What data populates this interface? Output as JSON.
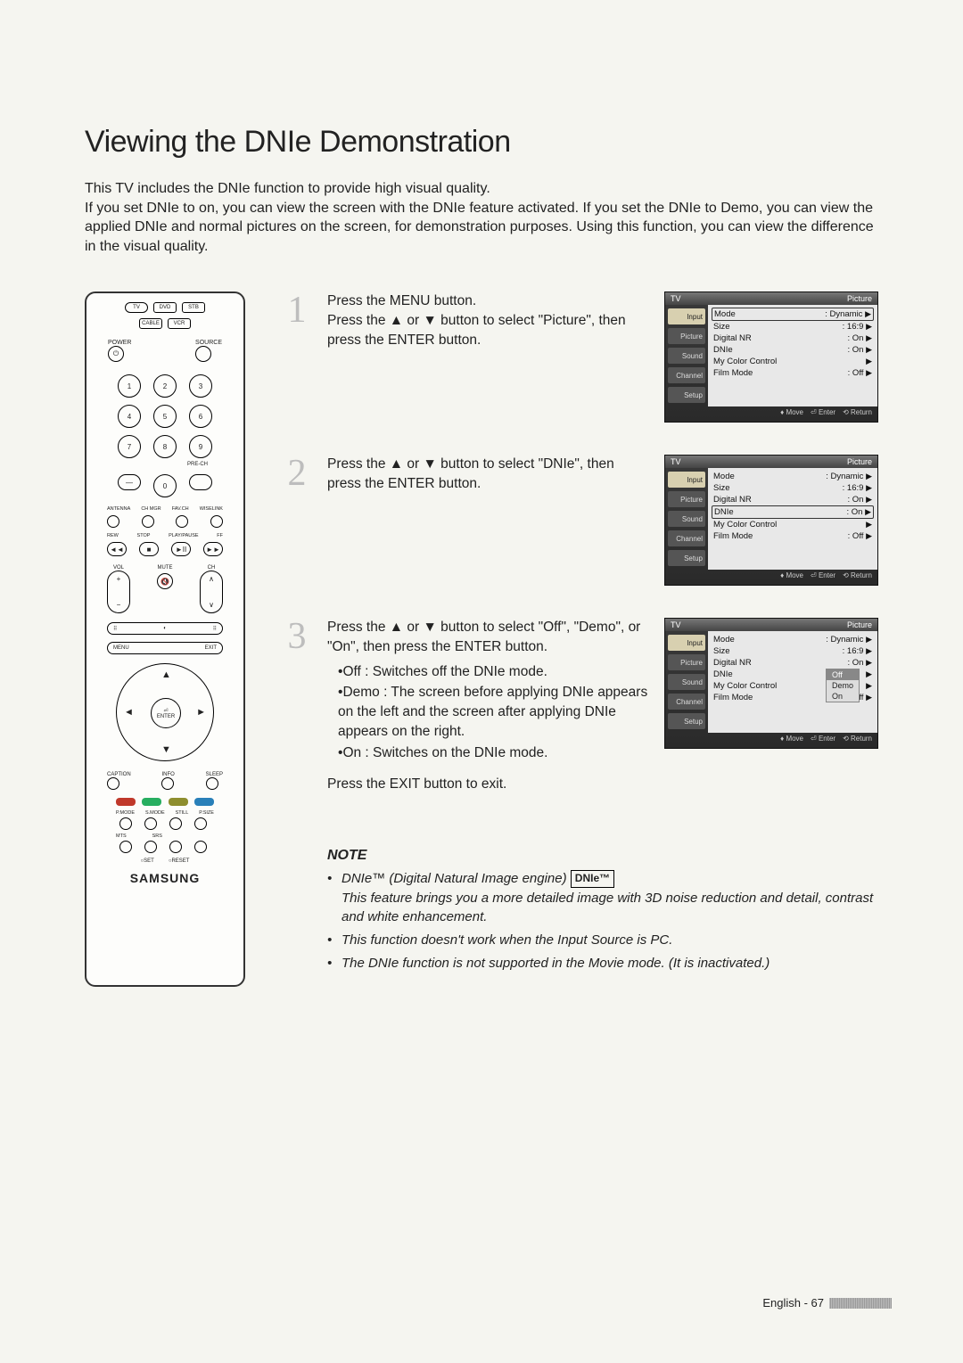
{
  "title": "Viewing the DNIe Demonstration",
  "intro": "This TV includes the DNIe function to provide high visual quality.\nIf you set DNIe to on, you can view the screen with the DNIe feature activated. If you set the DNIe to Demo, you can view the applied DNIe and normal pictures on the screen, for demonstration purposes. Using this function, you can view the difference in the visual quality.",
  "remote": {
    "modes": [
      "TV",
      "DVD",
      "STB",
      "CABLE",
      "VCR"
    ],
    "power": "POWER",
    "source": "SOURCE",
    "numbers": [
      "1",
      "2",
      "3",
      "4",
      "5",
      "6",
      "7",
      "8",
      "9"
    ],
    "prech": "PRE-CH",
    "zero": "0",
    "row_lbls": [
      "ANTENNA",
      "CH MGR",
      "FAV.CH",
      "WISELINK"
    ],
    "trans_lbls": [
      "REW",
      "STOP",
      "PLAY/PAUSE",
      "FF"
    ],
    "trans": [
      "◄◄",
      "■",
      "►II",
      "►►"
    ],
    "vol": "VOL",
    "ch": "CH",
    "mute": "MUTE",
    "menu": "MENU",
    "exit": "EXIT",
    "enter": "ENTER",
    "caption": "CAPTION",
    "info": "INFO",
    "sleep": "SLEEP",
    "colors": [
      "#c0392b",
      "#27ae60",
      "#8e8e2e",
      "#2980b9"
    ],
    "small_row1": [
      "P.MODE",
      "S.MODE",
      "STILL",
      "P.SIZE"
    ],
    "small_row2": [
      "MTS",
      "SRS",
      "",
      ""
    ],
    "set": "○SET",
    "reset": "○RESET",
    "brand": "SAMSUNG"
  },
  "steps": [
    {
      "num": "1",
      "text": "Press the MENU button.\nPress the ▲ or ▼ button to select \"Picture\", then press the ENTER button.",
      "osd": {
        "hl_row": 0,
        "dnie_popup": false
      }
    },
    {
      "num": "2",
      "text": "Press the ▲ or ▼ button to select \"DNIe\", then press the ENTER button.",
      "osd": {
        "hl_row": 3,
        "dnie_popup": false
      }
    },
    {
      "num": "3",
      "text": "Press the ▲ or ▼ button to select \"Off\", \"Demo\", or \"On\", then press the ENTER button.",
      "bullets": [
        "Off : Switches off the DNIe mode.",
        "Demo : The screen before applying DNIe appears on the left and the screen after applying DNIe appears on the right.",
        "On : Switches on the DNIe mode."
      ],
      "after": "Press the EXIT button to exit.",
      "osd": {
        "hl_row": -1,
        "dnie_popup": true
      }
    }
  ],
  "osd_common": {
    "tv": "TV",
    "section": "Picture",
    "tabs": [
      "Input",
      "Picture",
      "Sound",
      "Channel",
      "Setup"
    ],
    "rows": [
      {
        "k": "Mode",
        "v": ": Dynamic"
      },
      {
        "k": "Size",
        "v": ": 16:9"
      },
      {
        "k": "Digital NR",
        "v": ": On"
      },
      {
        "k": "DNIe",
        "v": ": On"
      },
      {
        "k": "My Color Control",
        "v": ""
      },
      {
        "k": "Film Mode",
        "v": ": Off"
      }
    ],
    "popup": [
      "Off",
      "Demo",
      "On"
    ],
    "foot": [
      "♦ Move",
      "⏎ Enter",
      "⟲ Return"
    ]
  },
  "note": {
    "title": "NOTE",
    "items": [
      {
        "pre": "DNIe™ (Digital Natural Image engine) ",
        "badge": "DNIe™",
        "post": "",
        "tail": "This feature brings you a more detailed image with 3D noise reduction and detail, contrast and white enhancement."
      },
      {
        "text": "This function doesn't work when the Input Source is PC."
      },
      {
        "text": "The DNIe function is not supported in the Movie mode. (It is inactivated.)"
      }
    ]
  },
  "footer": {
    "label": "English - 67"
  }
}
